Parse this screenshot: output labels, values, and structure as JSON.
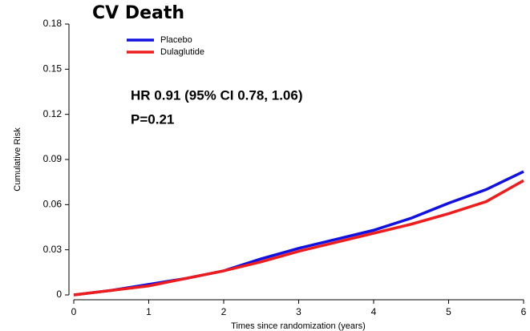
{
  "chart_data": {
    "type": "line",
    "title": "CV Death",
    "x_label": "Times since randomization (years)",
    "y_label": "Cumulative Risk",
    "annotations": [
      "HR 0.91 (95% CI 0.78, 1.06)",
      "P=0.21"
    ],
    "x": [
      0,
      0.5,
      1,
      1.5,
      2,
      2.5,
      3,
      3.5,
      4,
      4.5,
      5,
      5.5,
      6
    ],
    "series": [
      {
        "name": "Placebo",
        "color": "#1010e0",
        "values": [
          0,
          0.003,
          0.007,
          0.011,
          0.016,
          0.024,
          0.031,
          0.037,
          0.043,
          0.051,
          0.061,
          0.07,
          0.082
        ]
      },
      {
        "name": "Dulaglutide",
        "color": "#ee1c1c",
        "values": [
          0,
          0.003,
          0.006,
          0.011,
          0.016,
          0.022,
          0.029,
          0.035,
          0.041,
          0.047,
          0.054,
          0.062,
          0.076
        ]
      }
    ],
    "xlim": [
      0,
      6
    ],
    "xticks": [
      0,
      1,
      2,
      3,
      4,
      5,
      6
    ],
    "ylim": [
      0,
      0.18
    ],
    "yticks": [
      0,
      0.03,
      0.06,
      0.09,
      0.12,
      0.15,
      0.18
    ],
    "legend": "upper left",
    "grid": false
  }
}
